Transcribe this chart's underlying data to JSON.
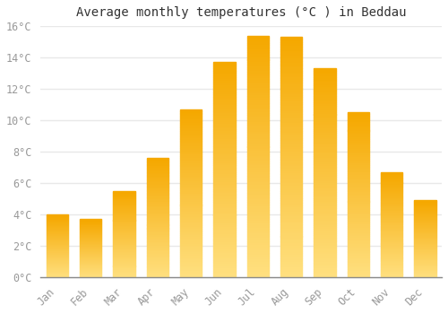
{
  "title": "Average monthly temperatures (°C ) in Beddau",
  "months": [
    "Jan",
    "Feb",
    "Mar",
    "Apr",
    "May",
    "Jun",
    "Jul",
    "Aug",
    "Sep",
    "Oct",
    "Nov",
    "Dec"
  ],
  "values": [
    4.0,
    3.7,
    5.5,
    7.6,
    10.7,
    13.7,
    15.4,
    15.3,
    13.3,
    10.5,
    6.7,
    4.9
  ],
  "bar_color_top": "#F5A800",
  "bar_color_bottom": "#FFE080",
  "ylim": [
    0,
    16
  ],
  "yticks": [
    0,
    2,
    4,
    6,
    8,
    10,
    12,
    14,
    16
  ],
  "ylabel_suffix": "°C",
  "background_color": "#FFFFFF",
  "grid_color": "#E8E8E8",
  "title_fontsize": 10,
  "tick_fontsize": 8.5,
  "tick_color": "#999999"
}
